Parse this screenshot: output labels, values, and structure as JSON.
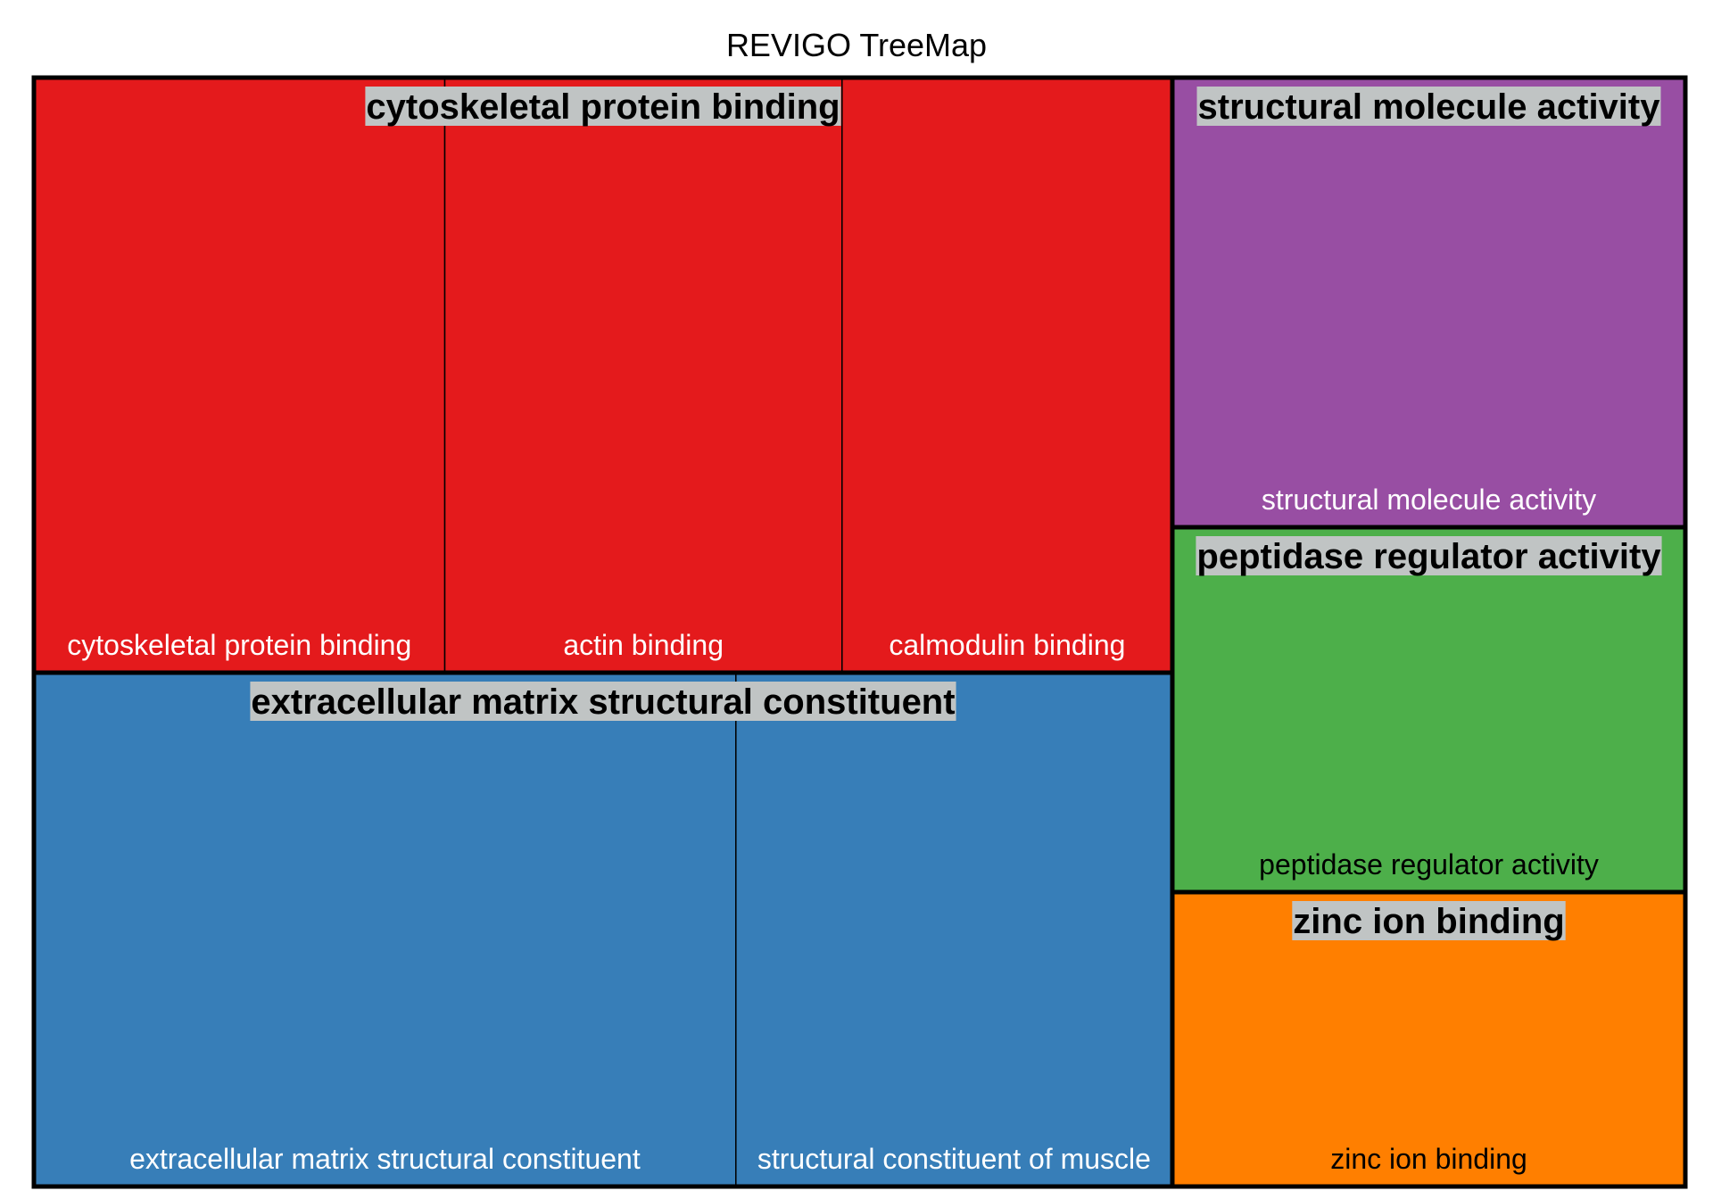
{
  "chart_data": {
    "type": "treemap",
    "title": "REVIGO TreeMap",
    "groups": [
      {
        "name": "cytoskeletal protein binding",
        "color": "#E41A1C",
        "terms": [
          {
            "name": "cytoskeletal protein binding",
            "value": 36.2,
            "label_color": "#ffffff"
          },
          {
            "name": "actin binding",
            "value": 35.0,
            "label_color": "#ffffff"
          },
          {
            "name": "calmodulin binding",
            "value": 29.1,
            "label_color": "#ffffff"
          }
        ]
      },
      {
        "name": "extracellular matrix structural constituent",
        "color": "#377EB8",
        "terms": [
          {
            "name": "extracellular matrix structural constituent",
            "value": 61.6,
            "label_color": "#ffffff"
          },
          {
            "name": "structural constituent of muscle",
            "value": 38.3,
            "label_color": "#ffffff"
          }
        ]
      },
      {
        "name": "structural molecule activity",
        "color": "#984EA3",
        "terms": [
          {
            "name": "structural molecule activity",
            "value": 40.0,
            "label_color": "#ffffff"
          }
        ]
      },
      {
        "name": "peptidase regulator activity",
        "color": "#4DAF4A",
        "terms": [
          {
            "name": "peptidase regulator activity",
            "value": 32.9,
            "label_color": "#000000"
          }
        ]
      },
      {
        "name": "zinc ion binding",
        "color": "#FF7F00",
        "terms": [
          {
            "name": "zinc ion binding",
            "value": 26.2,
            "label_color": "#000000"
          }
        ]
      }
    ],
    "group_label_background": "#C0C4C4",
    "border_color": "#000000"
  }
}
